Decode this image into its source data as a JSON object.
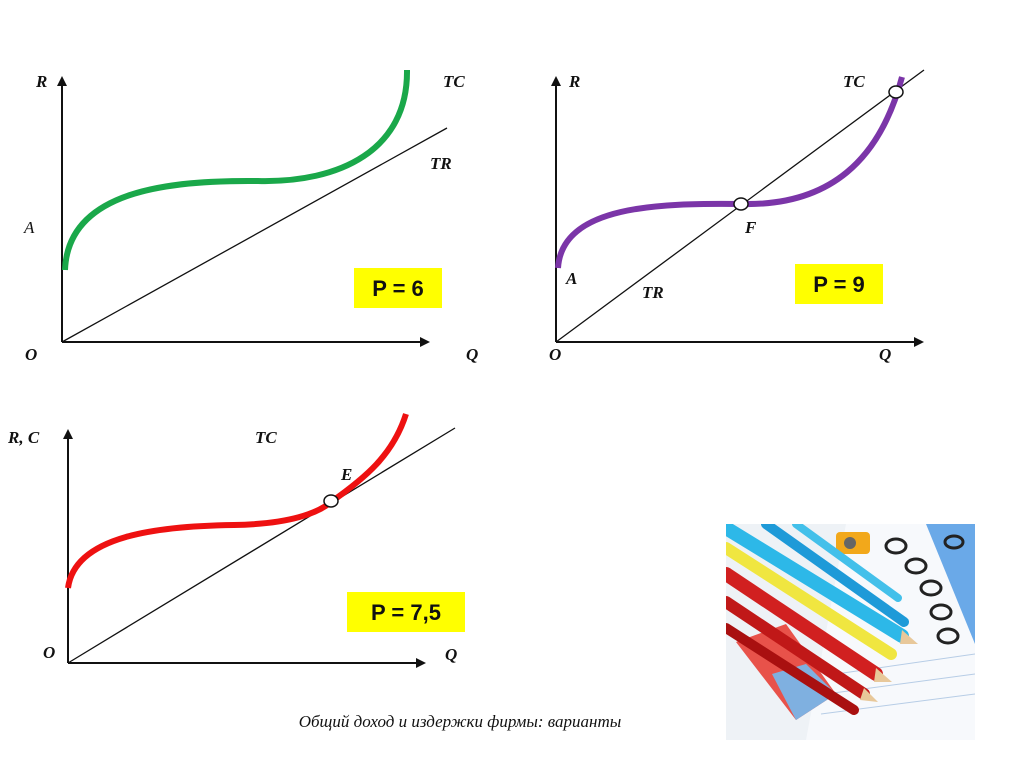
{
  "panels": [
    {
      "y_label": "R",
      "x_label": "Q",
      "origin_label": "O",
      "tc_label": "TC",
      "tr_label": "TR",
      "point_label": "A",
      "price_label": "P = 6",
      "tc_color": "#1aa84a"
    },
    {
      "y_label": "R",
      "x_label": "Q",
      "origin_label": "O",
      "tc_label": "TC",
      "tr_label": "TR",
      "point_label": "A",
      "intersection_label": "F",
      "price_label": "P = 9",
      "tc_color": "#7b35a8"
    },
    {
      "y_label": "R, C",
      "x_label": "Q",
      "origin_label": "O",
      "tc_label": "TC",
      "intersection_label": "E",
      "price_label": "P = 7,5",
      "tc_color": "#ee1111"
    }
  ],
  "caption": "Общий доход и издержки фирмы: варианты",
  "price_box_color": "#ffff00",
  "photo_icon": "pencils-notebook-image"
}
